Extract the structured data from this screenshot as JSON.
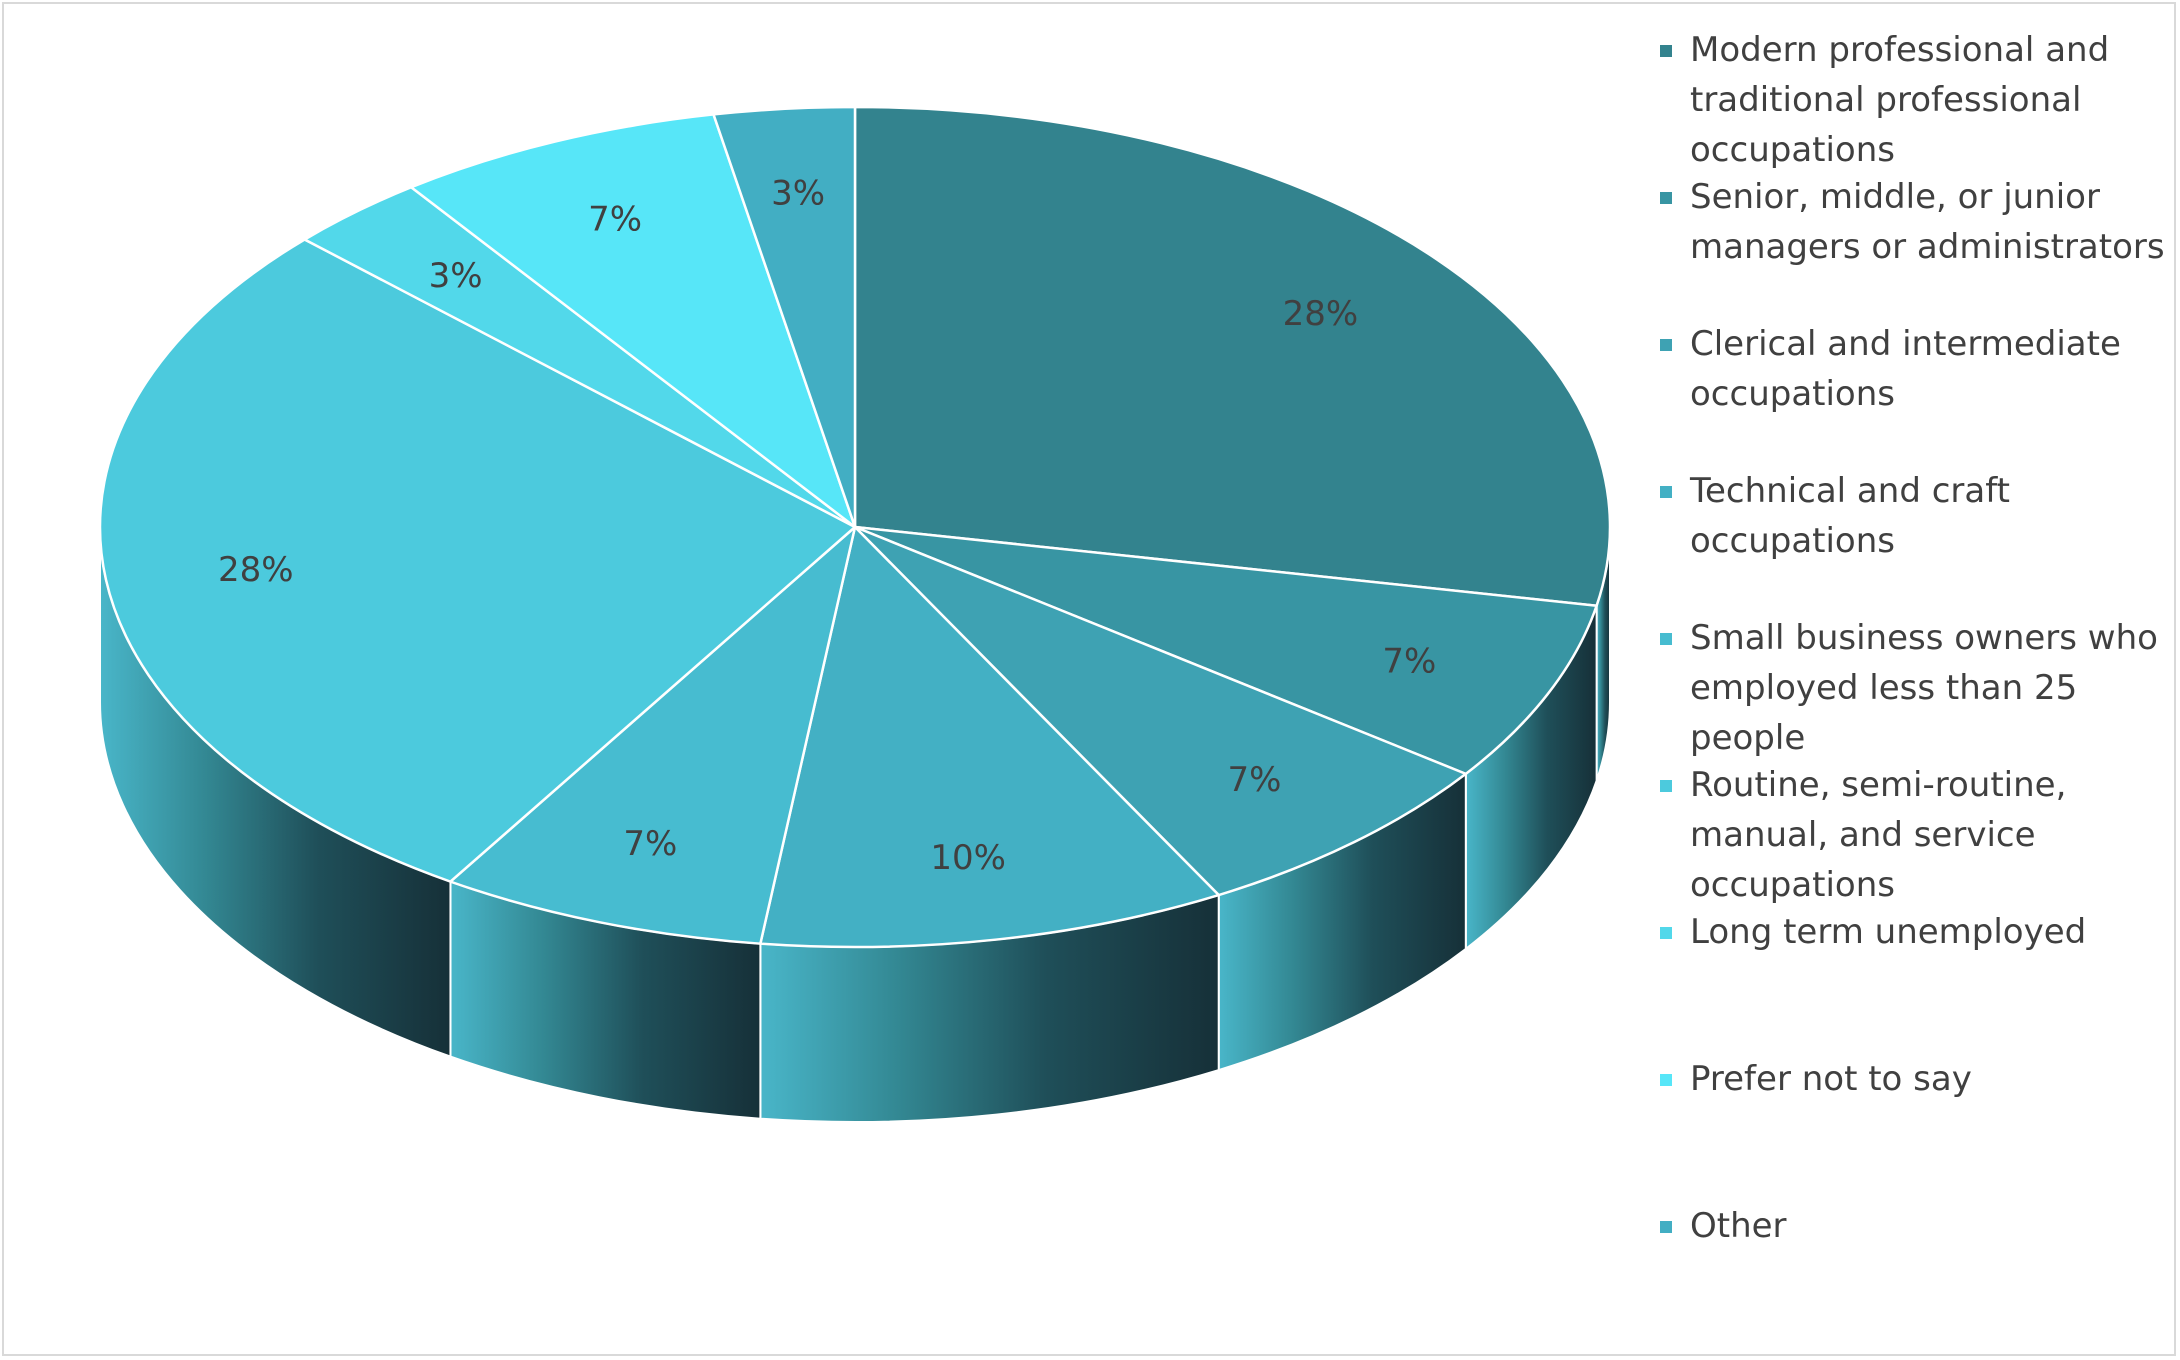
{
  "chart_data": {
    "type": "pie",
    "variant": "3d",
    "legend_position": "right",
    "categories": [
      "Modern professional and traditional professional occupations",
      "Senior, middle, or junior managers or administrators",
      "Clerical and intermediate occupations",
      "Technical and craft occupations",
      "Small business owners who employed less than 25 people",
      "Routine, semi-routine, manual, and service occupations",
      "Long term unemployed",
      "Prefer not to say",
      "Other"
    ],
    "values": [
      28,
      7,
      7,
      10,
      7,
      28,
      3,
      7,
      3
    ],
    "data_labels": [
      "28%",
      "7%",
      "7%",
      "10%",
      "7%",
      "28%",
      "3%",
      "7%",
      "3%"
    ],
    "colors": [
      "#33838e",
      "#3895a3",
      "#3ea2b3",
      "#43b0c4",
      "#47bcd0",
      "#4ccadd",
      "#52d8ea",
      "#57e6f8",
      "#42aec3"
    ]
  }
}
